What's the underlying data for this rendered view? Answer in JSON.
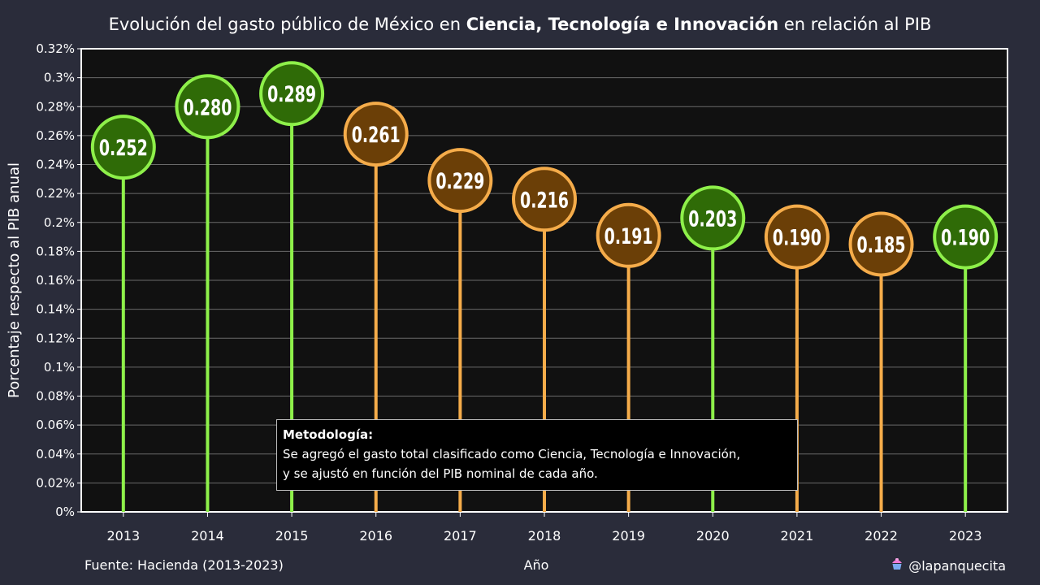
{
  "title": {
    "before": "Evolución del gasto público de México en ",
    "bold": "Ciencia, Tecnología e Innovación",
    "after": " en relación al PIB"
  },
  "chart_data": {
    "type": "lollipop",
    "title": "Evolución del gasto público de México en Ciencia, Tecnología e Innovación en relación al PIB",
    "xlabel": "Año",
    "ylabel": "Porcentaje respecto al PIB anual",
    "ylim": [
      0,
      0.32
    ],
    "yticks": [
      0,
      0.02,
      0.04,
      0.06,
      0.08,
      0.1,
      0.12,
      0.14,
      0.16,
      0.18,
      0.2,
      0.22,
      0.24,
      0.26,
      0.28,
      0.3,
      0.32
    ],
    "ytick_labels": [
      "0%",
      "0.02%",
      "0.04%",
      "0.06%",
      "0.08%",
      "0.1%",
      "0.12%",
      "0.14%",
      "0.16%",
      "0.18%",
      "0.2%",
      "0.22%",
      "0.24%",
      "0.26%",
      "0.28%",
      "0.3%",
      "0.32%"
    ],
    "grid": "horizontal",
    "categories": [
      "2013",
      "2014",
      "2015",
      "2016",
      "2017",
      "2018",
      "2019",
      "2020",
      "2021",
      "2022",
      "2023"
    ],
    "values": [
      0.252,
      0.28,
      0.289,
      0.261,
      0.229,
      0.216,
      0.191,
      0.203,
      0.19,
      0.185,
      0.19
    ],
    "value_labels": [
      "0.252",
      "0.280",
      "0.289",
      "0.261",
      "0.229",
      "0.216",
      "0.191",
      "0.203",
      "0.190",
      "0.185",
      "0.190"
    ],
    "trend": [
      "up",
      "up",
      "up",
      "down",
      "down",
      "down",
      "down",
      "up",
      "down",
      "down",
      "up"
    ],
    "colors": {
      "up_stem": "#8ef04a",
      "up_fill": "#2f6b07",
      "down_stem": "#f5ac4a",
      "down_fill": "#6b3f07",
      "plot_bg": "#111111",
      "grid": "#6a6a6a"
    }
  },
  "note": {
    "title": "Metodología:",
    "line1": "Se agregó el gasto total clasificado como Ciencia, Tecnología e Innovación,",
    "line2": "y se ajustó en función del PIB nominal de cada año."
  },
  "footer": {
    "source": "Fuente: Hacienda (2013-2023)",
    "xlabel": "Año",
    "handle": "@lapanquecita",
    "handle_icon": "cupcake-icon"
  }
}
